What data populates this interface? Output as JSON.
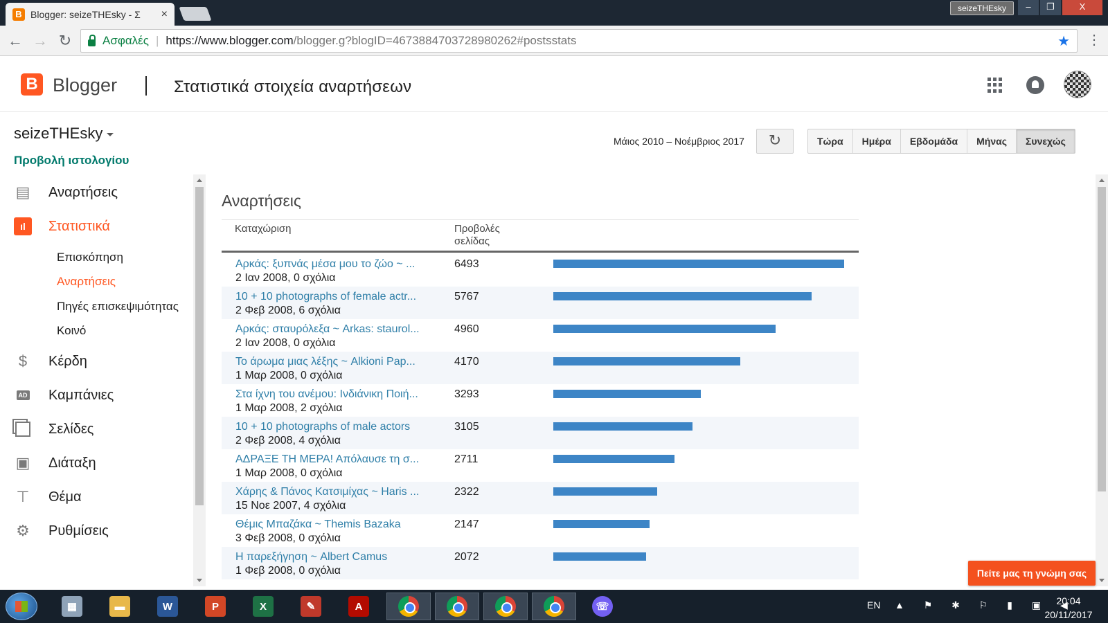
{
  "browser": {
    "tab_title": "Blogger: seizeTHEsky - Σ",
    "tab_close": "×",
    "profile_name": "seizeTHEsky",
    "window_buttons": [
      "‒",
      "❐",
      "X"
    ],
    "secure_label": "Ασφαλές",
    "url_host": "https://www.blogger.com",
    "url_path": "/blogger.g?blogID=4673884703728980262#postsstats"
  },
  "header": {
    "app_name": "Blogger",
    "page_title": "Στατιστικά στοιχεία αναρτήσεων"
  },
  "sidebar": {
    "blog_name": "seizeTHEsky",
    "view_blog": "Προβολή ιστολογίου",
    "items": [
      {
        "label": "Αναρτήσεις",
        "icon": "posts-icon"
      },
      {
        "label": "Στατιστικά",
        "icon": "stats-icon",
        "active": true
      },
      {
        "label": "Κέρδη",
        "icon": "dollar-icon"
      },
      {
        "label": "Καμπάνιες",
        "icon": "ad-icon"
      },
      {
        "label": "Σελίδες",
        "icon": "pages-icon"
      },
      {
        "label": "Διάταξη",
        "icon": "layout-icon"
      },
      {
        "label": "Θέμα",
        "icon": "theme-icon"
      },
      {
        "label": "Ρυθμίσεις",
        "icon": "gear-icon"
      }
    ],
    "stats_subitems": [
      {
        "label": "Επισκόπηση"
      },
      {
        "label": "Αναρτήσεις",
        "active": true
      },
      {
        "label": "Πηγές επισκεψιμότητας"
      },
      {
        "label": "Κοινό"
      }
    ]
  },
  "controls": {
    "date_range": "Μάιος 2010 – Νοέμβριος 2017",
    "periods": [
      "Τώρα",
      "Ημέρα",
      "Εβδομάδα",
      "Μήνας",
      "Συνεχώς"
    ],
    "selected_period": "Συνεχώς"
  },
  "posts_panel": {
    "title": "Αναρτήσεις",
    "col_entry": "Καταχώριση",
    "col_views_line1": "Προβολές",
    "col_views_line2": "σελίδας",
    "max_views": 6493,
    "rows": [
      {
        "title": "Αρκάς: ξυπνάς μέσα μου το ζώο ~ ...",
        "meta": "2 Ιαν 2008, 0 σχόλια",
        "views": 6493
      },
      {
        "title": "10 + 10 photographs of female actr...",
        "meta": "2 Φεβ 2008, 6 σχόλια",
        "views": 5767
      },
      {
        "title": "Αρκάς: σταυρόλεξα ~ Arkas: staurol...",
        "meta": "2 Ιαν 2008, 0 σχόλια",
        "views": 4960
      },
      {
        "title": "Το άρωμα μιας λέξης ~ Alkioni Pap...",
        "meta": "1 Μαρ 2008, 0 σχόλια",
        "views": 4170
      },
      {
        "title": "Στα ίχνη του ανέμου: Ινδιάνικη Ποιή...",
        "meta": "1 Μαρ 2008, 2 σχόλια",
        "views": 3293
      },
      {
        "title": "10 + 10 photographs of male actors",
        "meta": "2 Φεβ 2008, 4 σχόλια",
        "views": 3105
      },
      {
        "title": "ΑΔΡΑΞΕ ΤΗ ΜΕΡΑ! Απόλαυσε τη σ...",
        "meta": "1 Μαρ 2008, 0 σχόλια",
        "views": 2711
      },
      {
        "title": "Χάρης & Πάνος Κατσιμίχας ~ Haris ...",
        "meta": "15 Νοε 2007, 4 σχόλια",
        "views": 2322
      },
      {
        "title": "Θέμις Μπαζάκα ~ Themis Bazaka",
        "meta": "3 Φεβ 2008, 0 σχόλια",
        "views": 2147
      },
      {
        "title": "Η παρεξήγηση ~ Albert Camus",
        "meta": "1 Φεβ 2008, 0 σχόλια",
        "views": 2072
      }
    ]
  },
  "feedback_label": "Πείτε μας τη γνώμη σας",
  "taskbar": {
    "apps": [
      "calculator",
      "file-explorer",
      "word",
      "powerpoint",
      "excel",
      "paint",
      "acrobat",
      "chrome",
      "chrome",
      "chrome",
      "chrome",
      "viber"
    ],
    "glyph_labels": {
      "word": "W",
      "powerpoint": "P",
      "excel": "X",
      "acrobat": "A"
    },
    "language": "EN",
    "tray_glyphs": "▲ ⚑ ✱ ⚐ ▮ ▣ ◀",
    "time": "20:04",
    "date": "20/11/2017"
  },
  "colors": {
    "accent": "#ff5722",
    "link": "#2f7fa8",
    "bar": "#3d85c6",
    "view_blog": "#00796b"
  }
}
